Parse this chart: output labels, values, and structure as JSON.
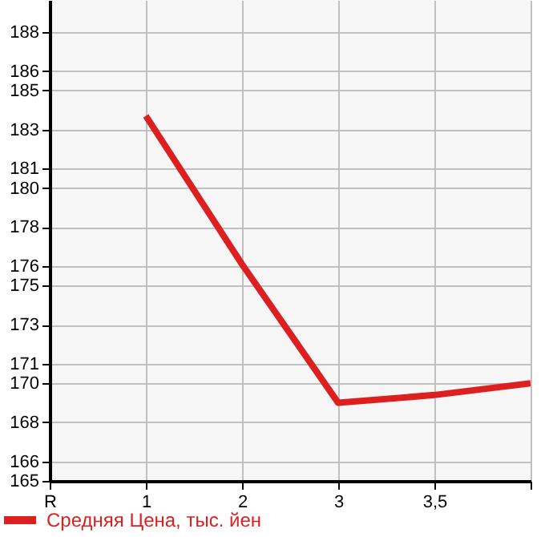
{
  "chart_data": {
    "type": "line",
    "categories": [
      "R",
      "1",
      "2",
      "3",
      "3,5",
      null
    ],
    "series": [
      {
        "name": "Средняя Цена, тыс. йен",
        "color": "#dd1f1f",
        "values": [
          null,
          183.7,
          176.1,
          169.0,
          169.4,
          170.0
        ]
      }
    ],
    "ylim": [
      165,
      189.64
    ],
    "yticks": [
      165,
      166,
      168,
      170,
      171,
      173,
      175,
      176,
      178,
      180,
      181,
      183,
      185,
      186,
      188
    ],
    "grid": true,
    "legend": "bottom left",
    "marker": "none",
    "line_style": "solid"
  }
}
